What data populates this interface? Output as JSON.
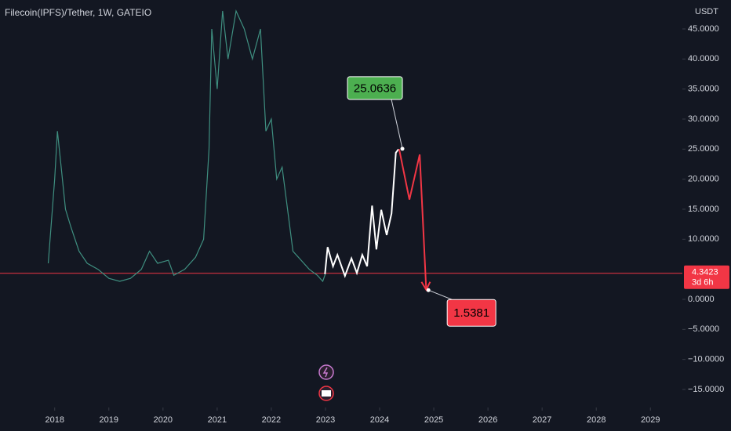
{
  "chart_data": {
    "type": "line",
    "title": "Filecoin(IPFS)/Tether, 1W, GATEIO",
    "y_axis_label": "USDT",
    "xlim": [
      2016.99,
      2029.59
    ],
    "xticks": [
      2018,
      2019,
      2020,
      2021,
      2022,
      2023,
      2024,
      2025,
      2026,
      2027,
      2028,
      2029
    ],
    "ylim": [
      -18,
      49.82
    ],
    "yticks": [
      {
        "value": 45,
        "label": "45.0000"
      },
      {
        "value": 40,
        "label": "40.0000"
      },
      {
        "value": 35,
        "label": "35.0000"
      },
      {
        "value": 30,
        "label": "30.0000"
      },
      {
        "value": 25,
        "label": "25.0000"
      },
      {
        "value": 20,
        "label": "20.0000"
      },
      {
        "value": 15,
        "label": "15.0000"
      },
      {
        "value": 10,
        "label": "10.0000"
      },
      {
        "value": 0,
        "label": "0.0000"
      },
      {
        "value": -5,
        "label": "−5.0000"
      },
      {
        "value": -10,
        "label": "−10.0000"
      },
      {
        "value": -15,
        "label": "−15.0000"
      }
    ],
    "series": [
      {
        "color": "#3f8f80",
        "x": [
          2017.88,
          2018.0,
          2018.05,
          2018.12,
          2018.2,
          2018.3,
          2018.45,
          2018.6,
          2018.8,
          2019.0,
          2019.2,
          2019.4,
          2019.6,
          2019.75,
          2019.9,
          2020.1,
          2020.2,
          2020.4,
          2020.6,
          2020.75,
          2020.85,
          2020.9,
          2021.0,
          2021.1,
          2021.2,
          2021.35,
          2021.5,
          2021.65,
          2021.8,
          2021.9,
          2022.0,
          2022.1,
          2022.2,
          2022.3,
          2022.4,
          2022.5,
          2022.7,
          2022.85,
          2022.95,
          2023.0
        ],
        "values": [
          6,
          20,
          28,
          22,
          15,
          12,
          8,
          6,
          5,
          3.5,
          3,
          3.5,
          5,
          8,
          6,
          6.5,
          4,
          5,
          7,
          10,
          25,
          45,
          35,
          48,
          40,
          48,
          45,
          40,
          45,
          28,
          30,
          20,
          22,
          15,
          8,
          7,
          5,
          4,
          3,
          4.3
        ]
      },
      {
        "color": "#ffffff",
        "x": [
          2022.99,
          2023.04,
          2023.14,
          2023.22,
          2023.36,
          2023.48,
          2023.58,
          2023.68,
          2023.77,
          2023.86,
          2023.94,
          2024.03,
          2024.13,
          2024.22,
          2024.3,
          2024.35
        ],
        "values": [
          4.2,
          8.7,
          5.5,
          7.4,
          3.9,
          6.8,
          4.4,
          7.4,
          5.5,
          15.6,
          8.3,
          14.9,
          10.7,
          14.3,
          24.4,
          25
        ]
      },
      {
        "color": "#f23645",
        "x": [
          2024.36,
          2024.55,
          2024.74,
          2024.86
        ],
        "values": [
          25,
          16.6,
          24.1,
          1.6
        ]
      }
    ],
    "annotations": [
      {
        "x": 2024.42,
        "value": 25.0636,
        "color": "#4caf50"
      },
      {
        "x": 2024.9,
        "value": 1.5381,
        "color": "#f23645"
      }
    ],
    "last_price": 4.3423,
    "last_price_color": "#f23645",
    "countdown": "3d 6h"
  }
}
